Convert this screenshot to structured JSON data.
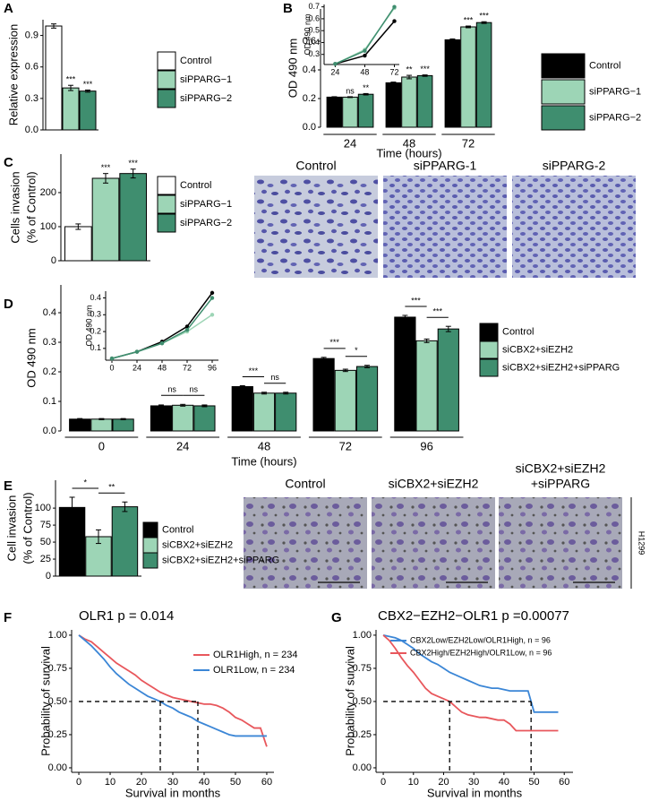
{
  "chart_data": [
    {
      "type": "bar",
      "panel": "A",
      "ylabel": [
        "Relative expression"
      ],
      "ylim": [
        0,
        1.05
      ],
      "yticks": [
        {
          "value": 0,
          "label": "0.0"
        },
        0.3,
        0.6,
        0.9
      ],
      "series": [
        {
          "name": "Control",
          "color": "#ffffff",
          "values": [
            0.99
          ],
          "errors": [
            0.02
          ]
        },
        {
          "name": "siPPARG−1",
          "color": "#9dd5b6",
          "values": [
            0.4
          ],
          "errors": [
            0.025
          ],
          "significance": [
            "***"
          ]
        },
        {
          "name": "siPPARG−2",
          "color": "#3f8e6f",
          "values": [
            0.37
          ],
          "errors": [
            0.01
          ],
          "significance": [
            "***"
          ]
        }
      ]
    },
    {
      "type": "bar",
      "panel": "B",
      "ylabel": [
        "OD 490 nm"
      ],
      "xlabel": "Time (hours)",
      "categories": [
        "24",
        "48",
        "72"
      ],
      "ylim": [
        0,
        0.825
      ],
      "yticks": [
        {
          "value": 0,
          "label": "0.0"
        },
        0.2,
        0.4,
        0.6
      ],
      "series": [
        {
          "name": "Control",
          "color": "#000000",
          "values": [
            0.21,
            0.31,
            0.61
          ],
          "errors": [
            0.003,
            0.005,
            0.006
          ]
        },
        {
          "name": "siPPARG−1",
          "color": "#9dd5b6",
          "values": [
            0.21,
            0.35,
            0.7
          ],
          "errors": [
            0.003,
            0.012,
            0.006
          ],
          "significance": [
            "ns",
            "**",
            "***"
          ]
        },
        {
          "name": "siPPARG−2",
          "color": "#3f8e6f",
          "values": [
            0.23,
            0.36,
            0.73
          ],
          "errors": [
            0.005,
            0.005,
            0.006
          ],
          "significance": [
            "**",
            "***",
            "***"
          ]
        }
      ]
    },
    {
      "type": "line",
      "ylabel": [
        "OD 490 nm"
      ],
      "x": [
        24,
        48,
        72
      ],
      "xlim": [
        15,
        76
      ],
      "xticks": [
        24,
        48,
        72
      ],
      "ylim": [
        0.215,
        0.72
      ],
      "yticks": [
        0.3,
        0.4,
        0.5,
        0.6,
        0.7
      ],
      "series": [
        {
          "color": "#000000",
          "values": [
            0.22,
            0.29,
            0.58
          ]
        },
        {
          "color": "#9dd5b6",
          "values": [
            0.22,
            0.34,
            0.69
          ]
        },
        {
          "color": "#3f8e6f",
          "values": [
            0.22,
            0.33,
            0.7
          ]
        }
      ]
    },
    {
      "type": "bar",
      "panel": "C",
      "ylabel": [
        "Cells invasion",
        "(% of Control)"
      ],
      "ylim": [
        0,
        313
      ],
      "yticks": [
        0,
        100,
        200
      ],
      "series": [
        {
          "name": "Control",
          "color": "#ffffff",
          "values": [
            100
          ],
          "errors": [
            8
          ]
        },
        {
          "name": "siPPARG−1",
          "color": "#9dd5b6",
          "values": [
            242
          ],
          "errors": [
            14
          ],
          "significance": [
            "***"
          ]
        },
        {
          "name": "siPPARG−2",
          "color": "#3f8e6f",
          "values": [
            256
          ],
          "errors": [
            13
          ],
          "significance": [
            "***"
          ]
        }
      ]
    },
    {
      "type": "bar",
      "panel": "D",
      "ylabel": [
        "OD 490 nm"
      ],
      "xlabel": "Time (hours)",
      "categories": [
        "0",
        "24",
        "48",
        "72",
        "96"
      ],
      "ylim": [
        0,
        0.494
      ],
      "yticks": [
        {
          "value": 0,
          "label": "0.0"
        },
        0.1,
        0.2,
        0.3,
        0.4
      ],
      "series": [
        {
          "name": "Control",
          "color": "#000000",
          "values": [
            0.04,
            0.085,
            0.15,
            0.245,
            0.385
          ],
          "errors": [
            0.002,
            0.003,
            0.003,
            0.004,
            0.006
          ]
        },
        {
          "name": "siCBX2+siEZH2",
          "color": "#9dd5b6",
          "values": [
            0.04,
            0.087,
            0.128,
            0.205,
            0.305
          ],
          "errors": [
            0.002,
            0.003,
            0.003,
            0.004,
            0.006
          ],
          "bracket_significance": [
            null,
            "ns",
            "***",
            "***",
            "***"
          ]
        },
        {
          "name": "siCBX2+siEZH2+siPPARG",
          "color": "#3f8e6f",
          "values": [
            0.04,
            0.085,
            0.128,
            0.218,
            0.345
          ],
          "errors": [
            0.002,
            0.003,
            0.003,
            0.004,
            0.009
          ],
          "bracket_significance": [
            null,
            "ns",
            "ns",
            "*",
            "***"
          ]
        }
      ]
    },
    {
      "type": "line",
      "ylabel": [
        "OD 490 nm"
      ],
      "x": [
        0,
        24,
        48,
        72,
        96
      ],
      "xlim": [
        -6,
        102
      ],
      "xticks": [
        0,
        24,
        48,
        72,
        96
      ],
      "ylim": [
        0.03,
        0.44
      ],
      "yticks": [
        0.1,
        0.2,
        0.3,
        0.4
      ],
      "series": [
        {
          "color": "#000000",
          "values": [
            0.04,
            0.08,
            0.14,
            0.23,
            0.43
          ]
        },
        {
          "color": "#9dd5b6",
          "values": [
            0.04,
            0.08,
            0.13,
            0.2,
            0.3
          ]
        },
        {
          "color": "#3f8e6f",
          "values": [
            0.04,
            0.08,
            0.13,
            0.21,
            0.4
          ]
        }
      ]
    },
    {
      "type": "bar",
      "panel": "E",
      "ylabel": [
        "Cell invasion",
        "(% of Control)"
      ],
      "ylim": [
        0,
        141
      ],
      "yticks": [
        0,
        25,
        50,
        75,
        100
      ],
      "series": [
        {
          "name": "Control",
          "color": "#000000",
          "values": [
            101
          ],
          "errors": [
            15
          ]
        },
        {
          "name": "siCBX2+siEZH2",
          "color": "#9dd5b6",
          "values": [
            58
          ],
          "errors": [
            10
          ],
          "bracket_significance": [
            "*"
          ]
        },
        {
          "name": "siCBX2+siEZH2+siPPARG",
          "color": "#3f8e6f",
          "values": [
            102
          ],
          "errors": [
            7
          ],
          "bracket_significance": [
            "**"
          ]
        }
      ]
    },
    {
      "type": "survival",
      "panel": "F",
      "title": "OLR1 p = 0.014",
      "xlabel": "Survival in months",
      "ylabel": [
        "Probability of survival"
      ],
      "xlim": [
        -2.3,
        62.3
      ],
      "xticks": [
        0,
        10,
        20,
        30,
        40,
        50,
        60
      ],
      "ylim": [
        -0.034,
        1.04
      ],
      "yticks": [
        {
          "value": 0,
          "label": "0.00"
        },
        {
          "value": 0.25,
          "label": "0.25"
        },
        {
          "value": 0.5,
          "label": "0.50"
        },
        {
          "value": 0.75,
          "label": "0.75"
        },
        {
          "value": 1,
          "label": "1.00"
        }
      ],
      "median_line": 0.5,
      "x": [
        0,
        2,
        4,
        6,
        8,
        10,
        12,
        14,
        16,
        18,
        20,
        22,
        24,
        26,
        28,
        30,
        32,
        34,
        36,
        38,
        40,
        42,
        44,
        46,
        48,
        50,
        52,
        54,
        56,
        58,
        60
      ],
      "series": [
        {
          "name": "OLR1High, n = 234",
          "color": "#e8575c",
          "median": 38,
          "values": [
            1,
            0.97,
            0.95,
            0.91,
            0.87,
            0.83,
            0.79,
            0.76,
            0.73,
            0.7,
            0.66,
            0.63,
            0.6,
            0.57,
            0.55,
            0.53,
            0.52,
            0.51,
            0.5,
            0.49,
            0.48,
            0.48,
            0.47,
            0.45,
            0.42,
            0.38,
            0.36,
            0.33,
            0.3,
            0.3,
            0.16
          ]
        },
        {
          "name": "OLR1Low, n = 234",
          "color": "#3b86d6",
          "median": 26,
          "values": [
            1,
            0.96,
            0.92,
            0.87,
            0.82,
            0.76,
            0.71,
            0.67,
            0.63,
            0.6,
            0.57,
            0.54,
            0.52,
            0.5,
            0.47,
            0.45,
            0.42,
            0.4,
            0.38,
            0.35,
            0.33,
            0.31,
            0.29,
            0.27,
            0.25,
            0.24,
            0.24,
            0.24,
            0.24,
            0.24,
            0.24
          ]
        }
      ]
    },
    {
      "type": "survival",
      "panel": "G",
      "title": "CBX2−EZH2−OLR1 p =0.00077",
      "xlabel": "Survival in months",
      "ylabel": [
        "Probability of survival"
      ],
      "xlim": [
        -2.4,
        62.9
      ],
      "xticks": [
        0,
        10,
        20,
        30,
        40,
        50,
        60
      ],
      "ylim": [
        -0.034,
        1.04
      ],
      "yticks": [
        {
          "value": 0,
          "label": "0.00"
        },
        {
          "value": 0.25,
          "label": "0.25"
        },
        {
          "value": 0.5,
          "label": "0.50"
        },
        {
          "value": 0.75,
          "label": "0.75"
        },
        {
          "value": 1,
          "label": "1.00"
        }
      ],
      "median_line": 0.5,
      "x": [
        0,
        2,
        4,
        6,
        8,
        10,
        12,
        14,
        16,
        18,
        20,
        22,
        24,
        26,
        28,
        30,
        32,
        34,
        36,
        38,
        40,
        42,
        44,
        46,
        48,
        50,
        52,
        54,
        56,
        58
      ],
      "series": [
        {
          "name": "CBX2Low/EZH2Low/OLR1High, n = 96",
          "color": "#3b86d6",
          "median": 49,
          "values": [
            1,
            0.99,
            0.98,
            0.96,
            0.93,
            0.9,
            0.86,
            0.83,
            0.8,
            0.78,
            0.75,
            0.72,
            0.7,
            0.68,
            0.66,
            0.64,
            0.62,
            0.61,
            0.6,
            0.6,
            0.59,
            0.58,
            0.58,
            0.58,
            0.58,
            0.42,
            0.42,
            0.42,
            0.42,
            0.42
          ]
        },
        {
          "name": "CBX2High/EZH2High/OLR1Low, n = 96",
          "color": "#e8575c",
          "median": 22,
          "values": [
            1,
            0.96,
            0.9,
            0.83,
            0.77,
            0.72,
            0.66,
            0.6,
            0.56,
            0.54,
            0.52,
            0.5,
            0.46,
            0.42,
            0.4,
            0.39,
            0.38,
            0.38,
            0.37,
            0.36,
            0.36,
            0.33,
            0.28,
            0.28,
            0.28,
            0.28,
            0.28,
            0.28,
            0.28,
            0.28
          ]
        }
      ]
    }
  ],
  "micrographs": [
    {
      "labels": [
        [
          "Control"
        ],
        [
          "siPPARG-1"
        ],
        [
          "siPPARG-2"
        ]
      ]
    },
    {
      "labels": [
        [
          "Control"
        ],
        [
          "siCBX2+siEZH2"
        ],
        [
          "siCBX2+siEZH2",
          "+siPPARG"
        ]
      ],
      "side_label": "H1299"
    }
  ]
}
